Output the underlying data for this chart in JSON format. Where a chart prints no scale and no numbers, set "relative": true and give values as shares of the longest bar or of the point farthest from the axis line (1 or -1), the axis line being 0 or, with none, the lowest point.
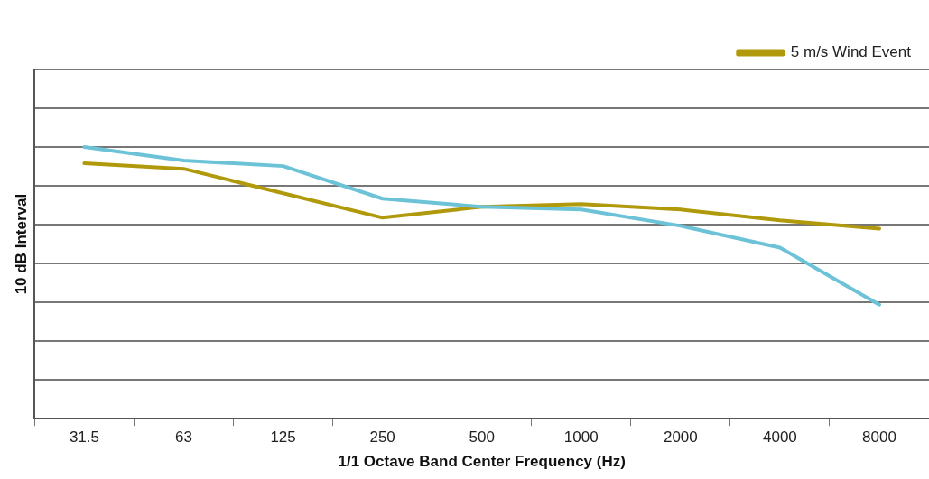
{
  "chart_data": {
    "type": "line",
    "relative": true,
    "xlabel": "1/1 Octave Band Center Frequency (Hz)",
    "ylabel": "10 dB Interval",
    "categories": [
      "31.5",
      "63",
      "125",
      "250",
      "500",
      "1000",
      "2000",
      "4000",
      "8000"
    ],
    "series": [
      {
        "color": "#6cc3d8",
        "values": [
          1.0,
          0.95,
          0.93,
          0.81,
          0.78,
          0.77,
          0.71,
          0.63,
          0.42
        ]
      },
      {
        "name": "5 m/s Wind Event",
        "color": "#b09a0c",
        "values": [
          0.94,
          0.92,
          0.83,
          0.74,
          0.78,
          0.79,
          0.77,
          0.73,
          0.7
        ]
      }
    ],
    "grid": "y",
    "legend": "top right",
    "marker": "none",
    "line_style": "solid"
  }
}
